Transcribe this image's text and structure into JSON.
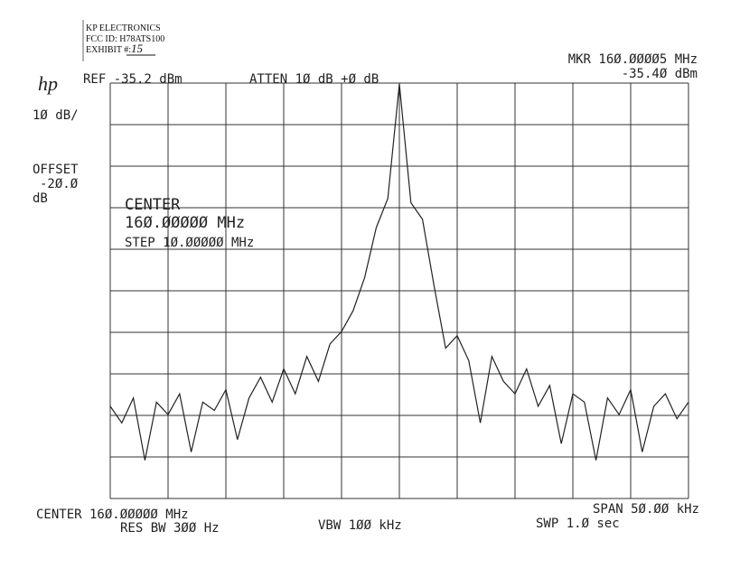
{
  "header": {
    "company": "KP ELECTRONICS",
    "fcc_id": "FCC ID: H78ATS100",
    "exhibit": "EXHIBIT #:",
    "exhibit_no": "15"
  },
  "chart_data": {
    "type": "line",
    "logo": "hp",
    "reference": "REF -35.2 dBm",
    "attenuation": "ATTEN 1Ø dB +Ø dB",
    "marker_freq": "MKR 16Ø.ØØØØ5 MHz",
    "marker_level": "-35.4Ø dBm",
    "scale": "1Ø dB/",
    "offset_label": "OFFSET",
    "offset_value": "-2Ø.Ø",
    "offset_unit": "dB",
    "center_label": "CENTER",
    "center_value": "16Ø.ØØØØØ MHz",
    "step": "STEP 1Ø.ØØØØØ MHz",
    "center_footer": "CENTER 16Ø.ØØØØØ MHz",
    "res_bw": "RES BW 3ØØ Hz",
    "vbw": "VBW 1ØØ kHz",
    "span": "SPAN 5Ø.ØØ kHz",
    "sweep": "SWP 1.Ø  sec",
    "color": "#222222",
    "grid": true,
    "xlim": [
      159.975,
      160.025
    ],
    "ylim": [
      -135.2,
      -35.2
    ],
    "x": [
      159.975,
      159.976,
      159.977,
      159.978,
      159.979,
      159.98,
      159.981,
      159.982,
      159.983,
      159.984,
      159.985,
      159.986,
      159.987,
      159.988,
      159.989,
      159.99,
      159.991,
      159.992,
      159.993,
      159.994,
      159.995,
      159.996,
      159.997,
      159.998,
      159.999,
      160.0,
      160.001,
      160.002,
      160.003,
      160.004,
      160.005,
      160.006,
      160.007,
      160.008,
      160.009,
      160.01,
      160.011,
      160.012,
      160.013,
      160.014,
      160.015,
      160.016,
      160.017,
      160.018,
      160.019,
      160.02,
      160.021,
      160.022,
      160.023,
      160.024,
      160.025
    ],
    "series": [
      {
        "name": "trace",
        "values": [
          -113,
          -117,
          -111,
          -126,
          -112,
          -115,
          -110,
          -124,
          -112,
          -114,
          -109,
          -121,
          -111,
          -106,
          -112,
          -104,
          -110,
          -101,
          -107,
          -98,
          -95,
          -90,
          -82,
          -70,
          -63,
          -35.4,
          -64,
          -68,
          -84,
          -99,
          -96,
          -102,
          -117,
          -101,
          -107,
          -110,
          -104,
          -113,
          -108,
          -122,
          -110,
          -112,
          -126,
          -111,
          -115,
          -109,
          -124,
          -113,
          -110,
          -116,
          -112
        ]
      }
    ]
  }
}
